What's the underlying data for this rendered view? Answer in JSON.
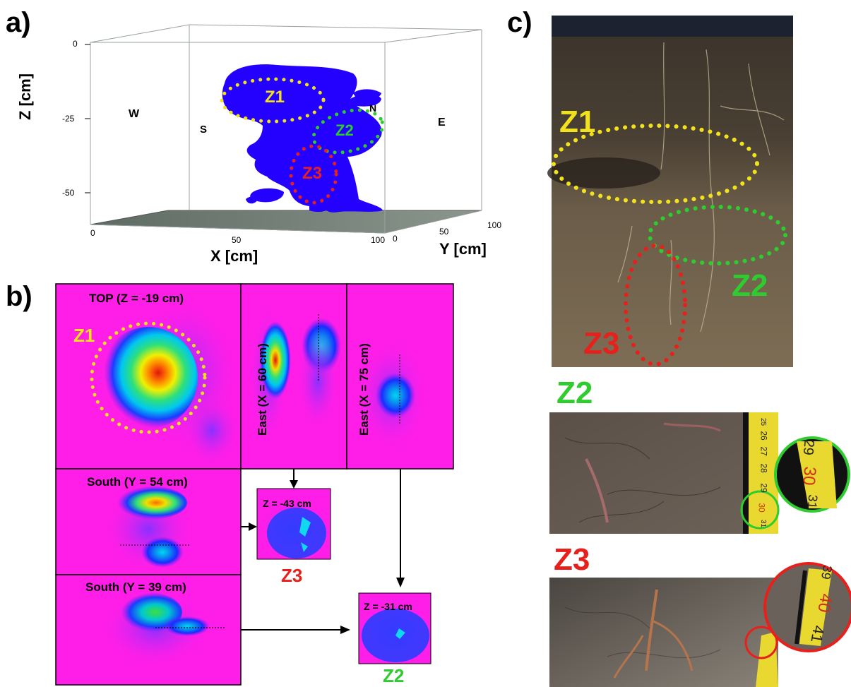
{
  "panels": {
    "a": {
      "letter": "a)",
      "axes": {
        "z_label": "Z [cm]",
        "x_label": "X [cm]",
        "y_label": "Y [cm]",
        "z_ticks": [
          "0",
          "-25",
          "-50"
        ],
        "x_ticks": [
          "0",
          "50",
          "100"
        ],
        "y_ticks": [
          "0",
          "50",
          "100"
        ]
      },
      "directions": {
        "west": "W",
        "east": "E",
        "south": "S",
        "north": "N"
      },
      "zones": {
        "z1": "Z1",
        "z2": "Z2",
        "z3": "Z3"
      }
    },
    "b": {
      "letter": "b)",
      "slices": {
        "top": "TOP (Z = -19 cm)",
        "east60": "East (X = 60 cm)",
        "east75": "East (X = 75 cm)",
        "south54": "South (Y = 54 cm)",
        "south39": "South (Y = 39 cm)",
        "z43": "Z = -43 cm",
        "z31": "Z = -31 cm"
      },
      "zones": {
        "z1": "Z1",
        "z2": "Z2",
        "z3": "Z3"
      }
    },
    "c": {
      "letter": "c)",
      "zones": {
        "z1": "Z1",
        "z2": "Z2",
        "z3": "Z3"
      },
      "tape_z2": [
        "25",
        "26",
        "27",
        "28",
        "29",
        "30",
        "31"
      ],
      "tape_z2_zoom": [
        "29",
        "30",
        "31"
      ],
      "tape_z3_zoom": [
        "39",
        "40",
        "41"
      ]
    }
  },
  "colors": {
    "z1": "#f2e21c",
    "z2": "#2ecc2e",
    "z3": "#e8201c",
    "volume": "#2400ff",
    "magenta": "#ff1ee8"
  }
}
